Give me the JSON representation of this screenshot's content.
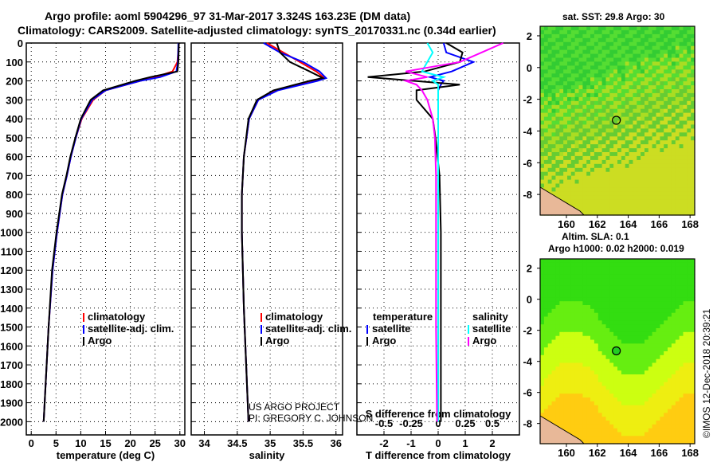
{
  "title_line1": "Argo profile: aoml 5904296_97 31-Mar-2017 3.324S 163.23E (DM data)",
  "title_line2": "Climatology: CARS2009. Satellite-adjusted climatology: synTS_20170331.nc (0.34d earlier)",
  "credit_line1": "US ARGO PROJECT",
  "credit_line2": "PI: GREGORY C. JOHNSON",
  "watermark": "©IMOS 12-Dec-2018 20:39:21",
  "colors": {
    "climatology": "#ff0000",
    "satellite": "#0000ff",
    "argo": "#000000",
    "sal_satellite": "#00ffff",
    "sal_argo": "#ff00ff"
  },
  "chart_data": [
    {
      "type": "line",
      "name": "temperature",
      "xlabel": "temperature (deg C)",
      "xlim": [
        -1,
        31
      ],
      "ylim": [
        2070,
        0
      ],
      "xticks": [
        "0",
        "5",
        "10",
        "15",
        "20",
        "25",
        "30"
      ],
      "xtickvals": [
        0,
        5,
        10,
        15,
        20,
        25,
        30
      ],
      "yticks": [
        "0",
        "100",
        "200",
        "300",
        "400",
        "500",
        "600",
        "700",
        "800",
        "900",
        "1000",
        "1100",
        "1200",
        "1300",
        "1400",
        "1500",
        "1600",
        "1700",
        "1800",
        "1900",
        "2000"
      ],
      "legend": [
        "climatology",
        "satellite-adj. clim.",
        "Argo"
      ],
      "depth": [
        0,
        100,
        150,
        180,
        200,
        250,
        300,
        400,
        500,
        600,
        700,
        800,
        1000,
        1200,
        1500,
        1800,
        2000
      ],
      "series": [
        {
          "name": "climatology",
          "values": [
            29.8,
            29.5,
            28.5,
            25,
            22,
            15,
            12.5,
            10.2,
            9,
            8,
            7.2,
            6.3,
            5.2,
            4.3,
            3.5,
            2.9,
            2.5
          ]
        },
        {
          "name": "satellite-adj. clim.",
          "values": [
            29.7,
            29.6,
            29.3,
            26,
            22,
            15,
            12.3,
            10.1,
            9,
            8,
            7.2,
            6.3,
            5.2,
            4.3,
            3.5,
            2.9,
            2.5
          ]
        },
        {
          "name": "Argo",
          "values": [
            29.8,
            29.7,
            29.5,
            24,
            21,
            14.5,
            12,
            10,
            8.9,
            7.9,
            7.1,
            6.2,
            5.1,
            4.2,
            3.5,
            2.9,
            2.5
          ]
        }
      ]
    },
    {
      "type": "line",
      "name": "salinity",
      "xlabel": "salinity",
      "xlim": [
        33.8,
        36.1
      ],
      "ylim": [
        2070,
        0
      ],
      "xticks": [
        "34",
        "34.5",
        "35",
        "35.5",
        "36"
      ],
      "xtickvals": [
        34,
        34.5,
        35,
        35.5,
        36
      ],
      "legend": [
        "climatology",
        "satellite-adj. clim.",
        "Argo"
      ],
      "depth": [
        0,
        50,
        100,
        150,
        185,
        200,
        250,
        300,
        400,
        600,
        800,
        1000,
        1400,
        2000
      ],
      "series": [
        {
          "name": "climatology",
          "values": [
            34.95,
            35.2,
            35.45,
            35.7,
            35.82,
            35.7,
            35.1,
            34.82,
            34.68,
            34.6,
            34.57,
            34.57,
            34.6,
            34.67
          ]
        },
        {
          "name": "satellite-adj. clim.",
          "values": [
            34.9,
            35.15,
            35.5,
            35.75,
            35.85,
            35.72,
            35.12,
            34.82,
            34.68,
            34.6,
            34.57,
            34.57,
            34.6,
            34.67
          ]
        },
        {
          "name": "Argo",
          "values": [
            35.1,
            35.15,
            35.3,
            35.6,
            35.8,
            35.6,
            35.05,
            34.8,
            34.67,
            34.6,
            34.57,
            34.57,
            34.6,
            34.67
          ]
        }
      ]
    },
    {
      "type": "line",
      "name": "difference",
      "xlabel": "T difference from climatology",
      "x2label": "S difference from climatology",
      "xlim": [
        -3,
        3
      ],
      "x2lim": [
        -0.75,
        0.75
      ],
      "ylim": [
        2070,
        0
      ],
      "xticks": [
        "-2",
        "-1",
        "0",
        "1",
        "2"
      ],
      "xtickvals": [
        -2,
        -1,
        0,
        1,
        2
      ],
      "x2ticks": [
        "-0.5",
        "-0.25",
        "0",
        "0.25",
        "0.5"
      ],
      "x2tickvals": [
        -0.5,
        -0.25,
        0,
        0.25,
        0.5
      ],
      "legend_t_title": "temperature",
      "legend_s_title": "salinity",
      "legend_t": [
        "satellite",
        "Argo"
      ],
      "legend_s": [
        "satellite",
        "Argo"
      ],
      "depth": [
        0,
        50,
        100,
        150,
        180,
        200,
        220,
        250,
        300,
        400,
        500,
        700,
        1000,
        1500,
        2000
      ],
      "series": [
        {
          "name": "T satellite",
          "axis": "T",
          "values": [
            0.2,
            0.3,
            1.3,
            0.5,
            -0.3,
            0.2,
            0.1,
            0,
            0,
            0,
            0,
            0,
            0,
            0,
            0
          ]
        },
        {
          "name": "T Argo",
          "axis": "T",
          "values": [
            0.3,
            0.9,
            0.8,
            -0.5,
            -2.6,
            -0.9,
            0.8,
            -0.8,
            -0.8,
            -0.2,
            -0.1,
            0.05,
            0.1,
            0.1,
            0.1
          ]
        },
        {
          "name": "S satellite",
          "axis": "S",
          "values": [
            -0.1,
            -0.05,
            -0.1,
            -0.15,
            0.05,
            -0.05,
            0,
            0,
            0,
            0,
            0,
            0,
            0,
            0,
            0
          ]
        },
        {
          "name": "S Argo",
          "axis": "S",
          "values": [
            0.6,
            0.4,
            0.2,
            -0.3,
            -0.1,
            -0.3,
            -0.2,
            -0.15,
            -0.1,
            -0.05,
            -0.03,
            -0.02,
            -0.02,
            -0.02,
            -0.01
          ]
        }
      ]
    },
    {
      "type": "heatmap",
      "name": "sst-map",
      "title": "sat. SST: 29.8 Argo: 30",
      "xlim": [
        158.3,
        168.3
      ],
      "ylim": [
        -9.3,
        2.6
      ],
      "xticks": [
        "160",
        "162",
        "164",
        "166",
        "168"
      ],
      "xtickvals": [
        160,
        162,
        164,
        166,
        168
      ],
      "yticks": [
        "2",
        "0",
        "-2",
        "-4",
        "-6",
        "-8"
      ],
      "ytickvals": [
        2,
        0,
        -2,
        -4,
        -6,
        -8
      ],
      "float": [
        163.23,
        -3.324
      ]
    },
    {
      "type": "heatmap",
      "name": "sla-map",
      "title": "Altim. SLA: 0.1",
      "subtitle": "Argo h1000: 0.02 h2000: 0.019",
      "xlim": [
        158.3,
        168.3
      ],
      "ylim": [
        -9.3,
        2.6
      ],
      "xticks": [
        "160",
        "162",
        "164",
        "166",
        "168"
      ],
      "xtickvals": [
        160,
        162,
        164,
        166,
        168
      ],
      "yticks": [
        "2",
        "0",
        "-2",
        "-4",
        "-6",
        "-8"
      ],
      "ytickvals": [
        2,
        0,
        -2,
        -4,
        -6,
        -8
      ],
      "float": [
        163.23,
        -3.324
      ]
    }
  ]
}
